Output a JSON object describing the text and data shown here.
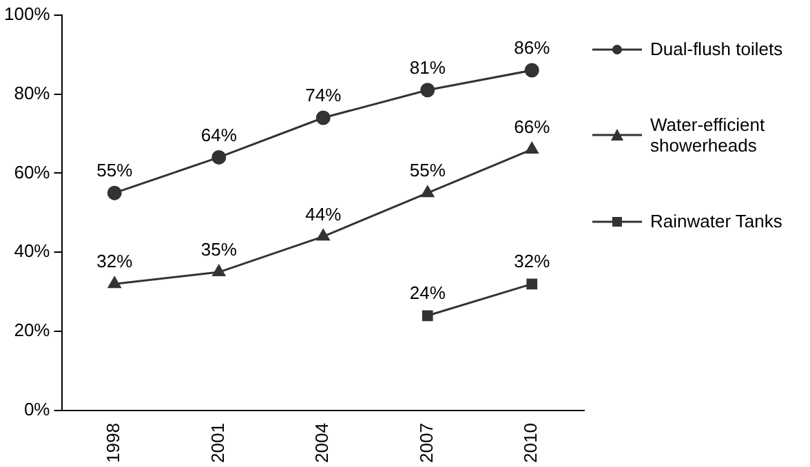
{
  "chart_data": {
    "type": "line",
    "categories": [
      "1998",
      "2001",
      "2004",
      "2007",
      "2010"
    ],
    "series": [
      {
        "name": "Dual-flush toilets",
        "color": "#333333",
        "marker": "circle",
        "values": [
          55,
          64,
          74,
          81,
          86
        ],
        "value_labels": [
          "55%",
          "64%",
          "74%",
          "81%",
          "86%"
        ]
      },
      {
        "name": "Water-efficient showerheads",
        "color": "#333333",
        "marker": "triangle",
        "values": [
          32,
          35,
          44,
          55,
          66
        ],
        "value_labels": [
          "32%",
          "35%",
          "44%",
          "55%",
          "66%"
        ]
      },
      {
        "name": "Rainwater Tanks",
        "color": "#333333",
        "marker": "square",
        "values": [
          null,
          null,
          null,
          24,
          32
        ],
        "value_labels": [
          null,
          null,
          null,
          "24%",
          "32%"
        ]
      }
    ],
    "ylim": [
      0,
      100
    ],
    "yticks": [
      {
        "value": 0,
        "label": "0%"
      },
      {
        "value": 20,
        "label": "20%"
      },
      {
        "value": 40,
        "label": "40%"
      },
      {
        "value": 60,
        "label": "60%"
      },
      {
        "value": 80,
        "label": "80%"
      },
      {
        "value": 100,
        "label": "100%"
      }
    ],
    "grid": false,
    "legend": "right",
    "line_style": "solid"
  }
}
